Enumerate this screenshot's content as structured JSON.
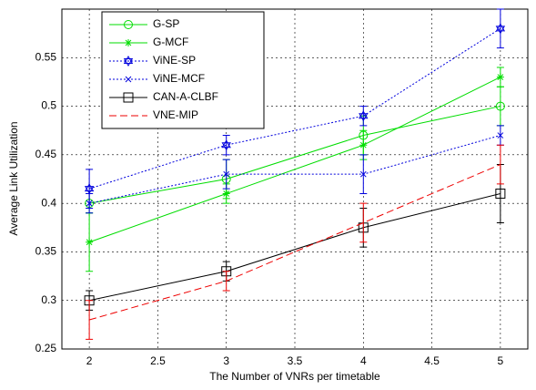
{
  "chart_data": {
    "type": "line",
    "xlabel": "The Number of VNRs per timetable",
    "ylabel": "Average Link Utilization",
    "x": [
      2,
      3,
      4,
      5
    ],
    "xlim": [
      1.8,
      5.2
    ],
    "xticks": [
      2,
      2.5,
      3,
      3.5,
      4,
      4.5,
      5
    ],
    "ylim": [
      0.25,
      0.6
    ],
    "yticks": [
      0.25,
      0.3,
      0.35,
      0.4,
      0.45,
      0.5,
      0.55
    ],
    "grid": true,
    "legend": "upper left",
    "series": [
      {
        "name": "G-SP",
        "color": "#00dd00",
        "dash": "solid",
        "marker": "circle",
        "values": [
          0.4,
          0.425,
          0.47,
          0.5
        ],
        "errors": [
          0.01,
          0.02,
          0.02,
          0.02
        ]
      },
      {
        "name": "G-MCF",
        "color": "#00dd00",
        "dash": "solid",
        "marker": "star",
        "values": [
          0.36,
          0.41,
          0.46,
          0.53
        ],
        "errors": [
          0.03,
          0.01,
          0.015,
          0.01
        ]
      },
      {
        "name": "ViNE-SP",
        "color": "#0000dd",
        "dash": "dotted",
        "marker": "hexagram",
        "values": [
          0.415,
          0.46,
          0.49,
          0.58
        ],
        "errors": [
          0.02,
          0.01,
          0.01,
          0.02
        ]
      },
      {
        "name": "ViNE-MCF",
        "color": "#0000dd",
        "dash": "dotted",
        "marker": "x",
        "values": [
          0.4,
          0.43,
          0.43,
          0.47
        ],
        "errors": [
          0.01,
          0.015,
          0.02,
          0.01
        ]
      },
      {
        "name": "CAN-A-CLBF",
        "color": "#000000",
        "dash": "solid",
        "marker": "square",
        "values": [
          0.3,
          0.33,
          0.375,
          0.41
        ],
        "errors": [
          0.01,
          0.01,
          0.02,
          0.03
        ]
      },
      {
        "name": "VNE-MIP",
        "color": "#ee0000",
        "dash": "dashed",
        "marker": "none",
        "values": [
          0.28,
          0.32,
          0.38,
          0.44
        ],
        "errors": [
          0.02,
          0.01,
          0.02,
          0.02
        ]
      }
    ]
  }
}
